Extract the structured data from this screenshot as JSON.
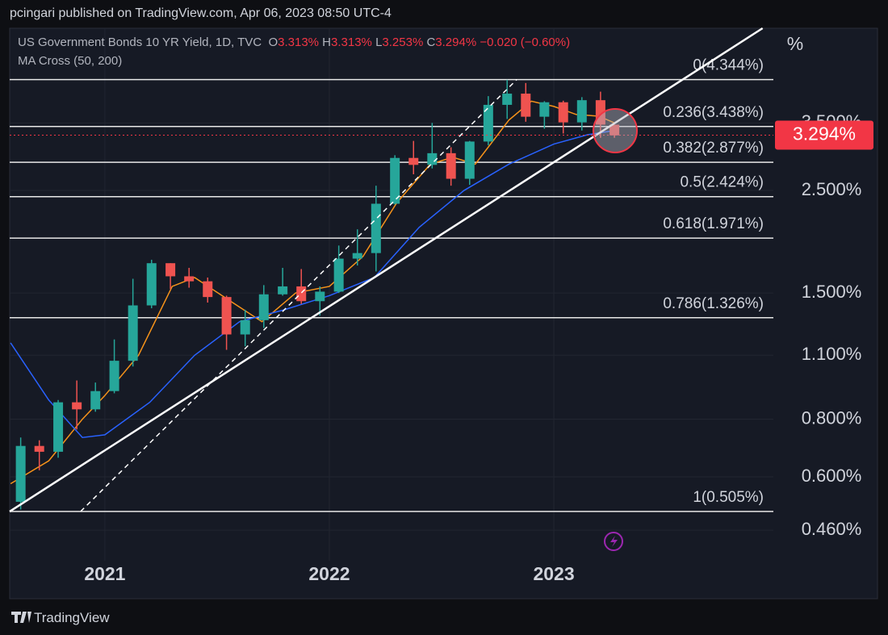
{
  "header": {
    "publisher": "pcingari published on TradingView.com, Apr 06, 2023 08:50 UTC-4"
  },
  "footer": {
    "brand": "TradingView"
  },
  "chart_data": {
    "type": "candlestick",
    "legend": {
      "symbol": "US Government Bonds 10 YR Yield, 1D, TVC",
      "ohlc": [
        {
          "key": "O",
          "value": "3.313%"
        },
        {
          "key": "H",
          "value": "3.313%"
        },
        {
          "key": "L",
          "value": "3.253%"
        },
        {
          "key": "C",
          "value": "3.294%"
        }
      ],
      "change": "−0.020 (−0.60%)"
    },
    "axis_unit": "%",
    "log_scale": true,
    "grid": true,
    "xlim": [
      2020.576,
      2023.978
    ],
    "xticks": [
      2021,
      2022,
      2023
    ],
    "ylim": [
      0.327,
      5.61
    ],
    "yticks": [
      {
        "value": 0.46,
        "label": "0.460%"
      },
      {
        "value": 0.6,
        "label": "0.600%"
      },
      {
        "value": 0.8,
        "label": "0.800%"
      },
      {
        "value": 1.1,
        "label": "1.100%"
      },
      {
        "value": 1.5,
        "label": "1.500%"
      },
      {
        "value": 2.5,
        "label": "2.500%"
      },
      {
        "value": 3.5,
        "label": "3.500%"
      }
    ],
    "candles": {
      "up_color": "#26a69a",
      "down_color": "#ef5350",
      "x": [
        2020.625,
        2020.708,
        2020.792,
        2020.875,
        2020.958,
        2021.042,
        2021.125,
        2021.208,
        2021.292,
        2021.375,
        2021.458,
        2021.542,
        2021.625,
        2021.708,
        2021.792,
        2021.875,
        2021.958,
        2022.042,
        2022.125,
        2022.208,
        2022.292,
        2022.375,
        2022.458,
        2022.542,
        2022.625,
        2022.708,
        2022.792,
        2022.875,
        2022.958,
        2023.042,
        2023.125,
        2023.208,
        2023.27
      ],
      "open": [
        0.53,
        0.7,
        0.68,
        0.87,
        0.84,
        0.92,
        1.07,
        1.41,
        1.74,
        1.63,
        1.59,
        1.47,
        1.22,
        1.31,
        1.49,
        1.55,
        1.44,
        1.51,
        1.78,
        1.83,
        2.34,
        2.94,
        2.84,
        3.01,
        2.65,
        3.19,
        3.83,
        4.05,
        3.61,
        3.88,
        3.51,
        3.92,
        3.47
      ],
      "high": [
        0.73,
        0.72,
        0.88,
        0.97,
        0.96,
        1.19,
        1.61,
        1.77,
        1.74,
        1.7,
        1.62,
        1.48,
        1.38,
        1.56,
        1.7,
        1.69,
        1.55,
        1.9,
        2.06,
        2.56,
        2.98,
        3.2,
        3.5,
        3.1,
        3.2,
        4.0,
        4.34,
        4.27,
        3.9,
        3.91,
        3.98,
        4.09,
        3.47
      ],
      "low": [
        0.51,
        0.62,
        0.66,
        0.76,
        0.83,
        0.91,
        1.04,
        1.39,
        1.53,
        1.54,
        1.43,
        1.13,
        1.15,
        1.26,
        1.48,
        1.42,
        1.34,
        1.5,
        1.72,
        1.67,
        2.33,
        2.71,
        2.79,
        2.56,
        2.57,
        3.13,
        3.57,
        3.52,
        3.4,
        3.32,
        3.37,
        3.25,
        3.25
      ],
      "close": [
        0.7,
        0.68,
        0.87,
        0.84,
        0.92,
        1.07,
        1.41,
        1.74,
        1.63,
        1.59,
        1.47,
        1.22,
        1.31,
        1.49,
        1.55,
        1.44,
        1.51,
        1.78,
        1.83,
        2.34,
        2.94,
        2.84,
        3.01,
        2.65,
        3.19,
        3.83,
        4.05,
        3.61,
        3.88,
        3.51,
        3.92,
        3.47,
        3.29
      ]
    },
    "ma": {
      "title": "MA Cross (50, 200)",
      "lines": [
        {
          "color": "#f7931a",
          "x": [
            2020.58,
            2020.75,
            2020.9,
            2021.0,
            2021.15,
            2021.3,
            2021.4,
            2021.55,
            2021.7,
            2021.85,
            2022.0,
            2022.15,
            2022.3,
            2022.45,
            2022.55,
            2022.65,
            2022.8,
            2022.9,
            2023.0,
            2023.1,
            2023.2,
            2023.27
          ],
          "values": [
            0.58,
            0.65,
            0.8,
            0.9,
            1.1,
            1.55,
            1.62,
            1.45,
            1.3,
            1.5,
            1.55,
            1.8,
            2.35,
            2.85,
            2.95,
            2.85,
            3.55,
            3.9,
            3.8,
            3.65,
            3.62,
            3.5
          ]
        },
        {
          "color": "#2962ff",
          "x": [
            2020.58,
            2020.75,
            2020.9,
            2021.0,
            2021.2,
            2021.4,
            2021.6,
            2021.8,
            2022.0,
            2022.2,
            2022.4,
            2022.6,
            2022.8,
            2023.0,
            2023.15,
            2023.27
          ],
          "values": [
            1.17,
            0.88,
            0.73,
            0.74,
            0.87,
            1.1,
            1.3,
            1.38,
            1.48,
            1.62,
            2.08,
            2.5,
            2.85,
            3.15,
            3.3,
            3.37
          ]
        }
      ]
    },
    "fib_levels": [
      {
        "label": "0(4.344%)",
        "value": 4.344
      },
      {
        "label": "0.236(3.438%)",
        "value": 3.438
      },
      {
        "label": "0.382(2.877%)",
        "value": 2.877
      },
      {
        "label": "0.5(2.424%)",
        "value": 2.424
      },
      {
        "label": "0.618(1.971%)",
        "value": 1.971
      },
      {
        "label": "0.786(1.326%)",
        "value": 1.326
      },
      {
        "label": "1(0.505%)",
        "value": 0.505
      }
    ],
    "trendlines": [
      {
        "dashed": false,
        "x": [
          2020.576,
          2023.93
        ],
        "y": [
          0.505,
          5.61
        ]
      },
      {
        "dashed": true,
        "x": [
          2020.892,
          2022.835
        ],
        "y": [
          0.505,
          4.344
        ]
      }
    ],
    "last_price": {
      "value": 3.294,
      "label": "3.294%",
      "color": "#f23645"
    }
  }
}
